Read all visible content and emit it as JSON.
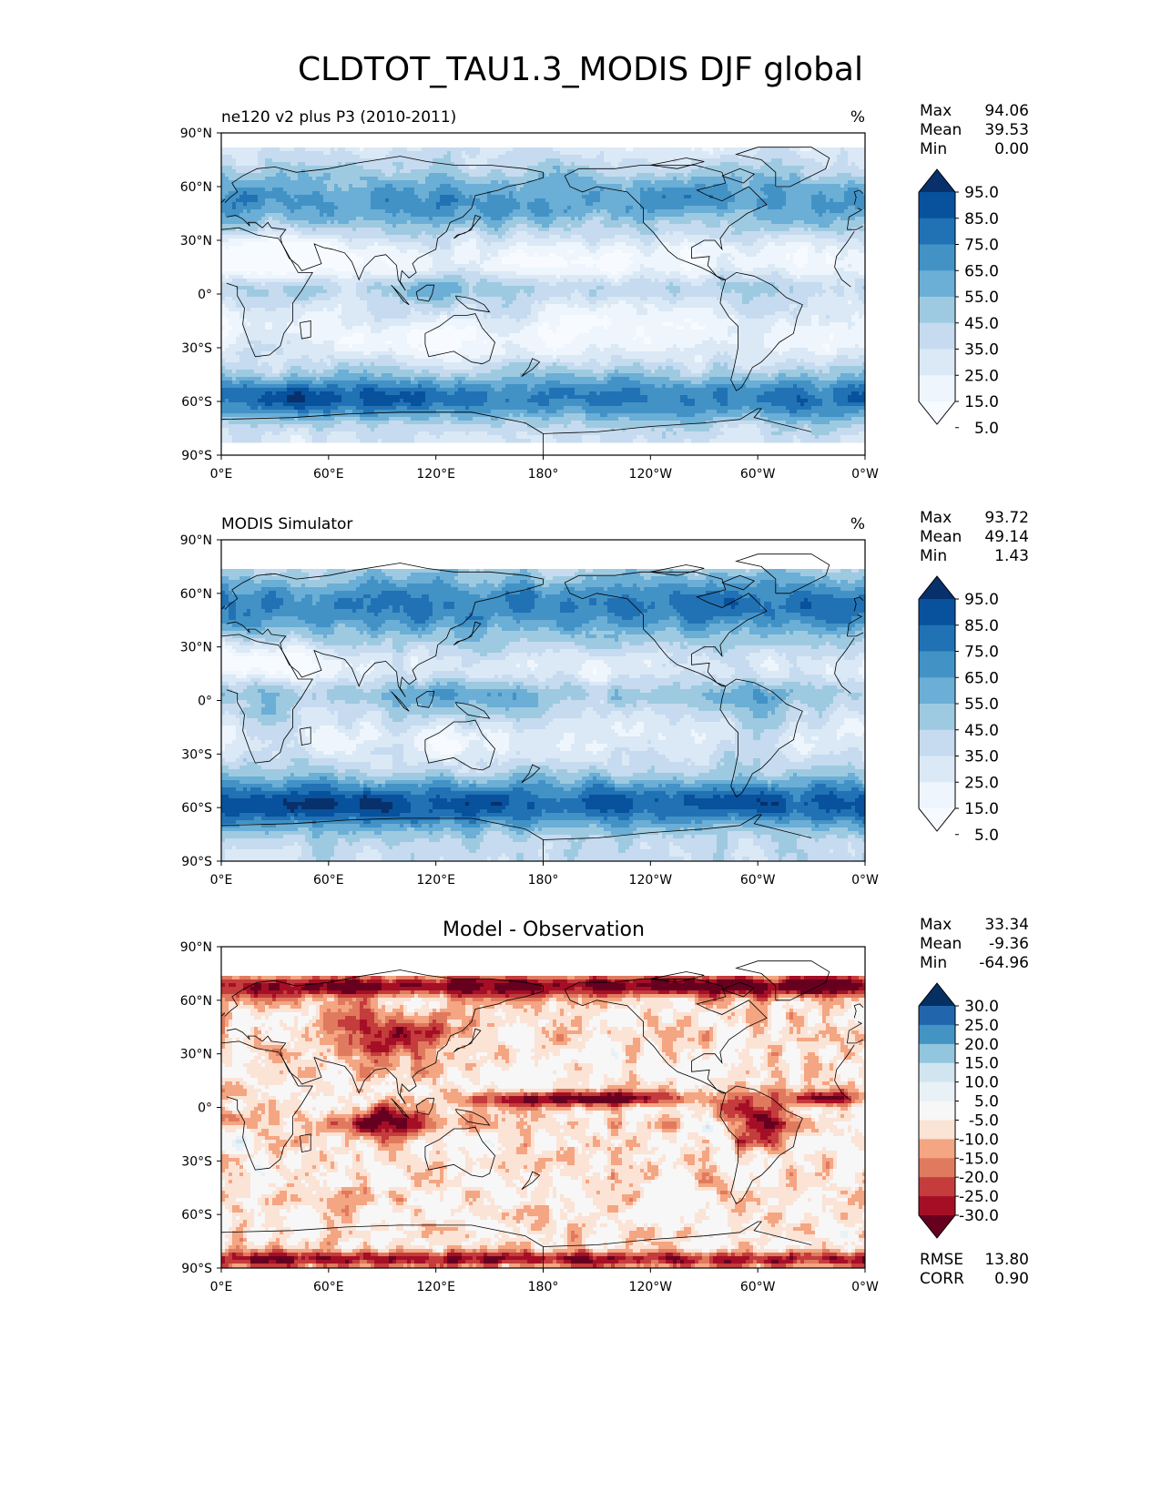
{
  "title": "CLDTOT_TAU1.3_MODIS DJF global",
  "x_ticks": [
    "0°E",
    "60°E",
    "120°E",
    "180°",
    "120°W",
    "60°W",
    "0°W"
  ],
  "y_ticks": [
    "90°N",
    "60°N",
    "30°N",
    "0°",
    "30°S",
    "60°S",
    "90°S"
  ],
  "chart_data": [
    {
      "type": "heatmap",
      "panel": "test",
      "title": "ne120 v2 plus P3 (2010-2011)",
      "units": "%",
      "stats": {
        "Max": "94.06",
        "Mean": "39.53",
        "Min": "0.00"
      },
      "colorbar": {
        "levels": [
          "95.0",
          "85.0",
          "75.0",
          "65.0",
          "55.0",
          "45.0",
          "35.0",
          "25.0",
          "15.0",
          "5.0"
        ],
        "colors": [
          "#08306b",
          "#08519c",
          "#2171b5",
          "#4292c6",
          "#6baed6",
          "#9ecae1",
          "#c6dbef",
          "#dbe9f6",
          "#eef5fc",
          "#f7fbff"
        ]
      },
      "lat_cover": [
        -83,
        82
      ]
    },
    {
      "type": "heatmap",
      "panel": "reference",
      "title": "MODIS Simulator",
      "units": "%",
      "stats": {
        "Max": "93.72",
        "Mean": "49.14",
        "Min": "1.43"
      },
      "colorbar": {
        "levels": [
          "95.0",
          "85.0",
          "75.0",
          "65.0",
          "55.0",
          "45.0",
          "35.0",
          "25.0",
          "15.0",
          "5.0"
        ],
        "colors": [
          "#08306b",
          "#08519c",
          "#2171b5",
          "#4292c6",
          "#6baed6",
          "#9ecae1",
          "#c6dbef",
          "#dbe9f6",
          "#eef5fc",
          "#f7fbff"
        ]
      },
      "lat_cover": [
        -90,
        73
      ]
    },
    {
      "type": "heatmap",
      "panel": "diff",
      "title": "Model - Observation",
      "units": "",
      "stats": {
        "Max": "33.34",
        "Mean": "-9.36",
        "Min": "-64.96"
      },
      "colorbar": {
        "levels": [
          "30.0",
          "25.0",
          "20.0",
          "15.0",
          "10.0",
          "5.0",
          "-5.0",
          "-10.0",
          "-15.0",
          "-20.0",
          "-25.0",
          "-30.0"
        ],
        "colors": [
          "#053061",
          "#2166ac",
          "#4393c3",
          "#92c5de",
          "#d1e5f0",
          "#e8f1f6",
          "#f7f7f7",
          "#fbe3d6",
          "#f4a582",
          "#e07a5f",
          "#c43c3c",
          "#a50f26",
          "#67001f"
        ]
      },
      "metrics": {
        "RMSE": "13.80",
        "CORR": "0.90"
      },
      "lat_cover": [
        -90,
        73
      ]
    }
  ],
  "continent_color": "#000000"
}
